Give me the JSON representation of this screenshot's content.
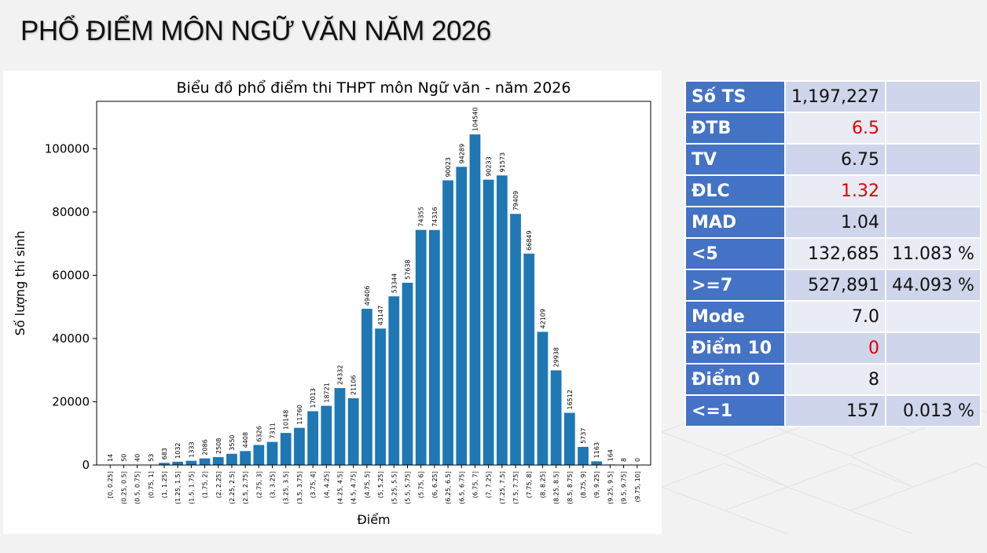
{
  "title": "PHỔ ĐIỂM MÔN NGỮ VĂN NĂM 2026",
  "stats": [
    {
      "label": "Số TS",
      "value": "1,197,227",
      "extra": "",
      "highlight": false
    },
    {
      "label": "ĐTB",
      "value": "6.5",
      "extra": "",
      "highlight": true
    },
    {
      "label": "TV",
      "value": "6.75",
      "extra": "",
      "highlight": false
    },
    {
      "label": "ĐLC",
      "value": "1.32",
      "extra": "",
      "highlight": true
    },
    {
      "label": "MAD",
      "value": "1.04",
      "extra": "",
      "highlight": false
    },
    {
      "label": "<5",
      "value": "132,685",
      "extra": "11.083 %",
      "highlight": false
    },
    {
      "label": ">=7",
      "value": "527,891",
      "extra": "44.093 %",
      "highlight": false
    },
    {
      "label": "Mode",
      "value": "7.0",
      "extra": "",
      "highlight": false
    },
    {
      "label": "Điểm 10",
      "value": "0",
      "extra": "",
      "highlight": true
    },
    {
      "label": "Điểm 0",
      "value": "8",
      "extra": "",
      "highlight": false
    },
    {
      "label": "<=1",
      "value": "157",
      "extra": "0.013 %",
      "highlight": false
    }
  ],
  "colors": {
    "bar": "#1f77b4",
    "stat_label_bg": "#4472c4",
    "highlight_text": "#e00000"
  },
  "chart_data": {
    "type": "bar",
    "title": "Biểu đồ phổ điểm thi THPT môn Ngữ văn - năm 2026",
    "xlabel": "Điểm",
    "ylabel": "Số lượng thí sinh",
    "ylim": [
      0,
      115000
    ],
    "yticks": [
      0,
      20000,
      40000,
      60000,
      80000,
      100000
    ],
    "grid": false,
    "categories": [
      "[0, 0.25]",
      "(0.25, 0.5]",
      "(0.5, 0.75]",
      "(0.75, 1]",
      "(1, 1.25]",
      "(1.25, 1.5]",
      "(1.5, 1.75]",
      "(1.75, 2]",
      "(2, 2.25]",
      "(2.25, 2.5]",
      "(2.5, 2.75]",
      "(2.75, 3]",
      "(3, 3.25]",
      "(3.25, 3.5]",
      "(3.5, 3.75]",
      "(3.75, 4]",
      "(4, 4.25]",
      "(4.25, 4.5]",
      "(4.5, 4.75]",
      "(4.75, 5]",
      "(5, 5.25]",
      "(5.25, 5.5]",
      "(5.5, 5.75]",
      "(5.75, 6]",
      "(6, 6.25]",
      "(6.25, 6.5]",
      "(6.5, 6.75]",
      "(6.75, 7]",
      "(7, 7.25]",
      "(7.25, 7.5]",
      "(7.5, 7.75]",
      "(7.75, 8]",
      "(8, 8.25]",
      "(8.25, 8.5]",
      "(8.5, 8.75]",
      "(8.75, 9]",
      "(9, 9.25]",
      "(9.25, 9.5]",
      "(9.5, 9.75]",
      "(9.75, 10]"
    ],
    "values": [
      14,
      50,
      40,
      53,
      683,
      1032,
      1333,
      2086,
      2508,
      3550,
      4408,
      6326,
      7311,
      10148,
      11760,
      17013,
      18721,
      24332,
      21106,
      49406,
      43147,
      53344,
      57638,
      74355,
      74316,
      90023,
      94289,
      104540,
      90233,
      91573,
      79409,
      66849,
      42109,
      29938,
      16512,
      5737,
      1163,
      164,
      8,
      0
    ]
  }
}
